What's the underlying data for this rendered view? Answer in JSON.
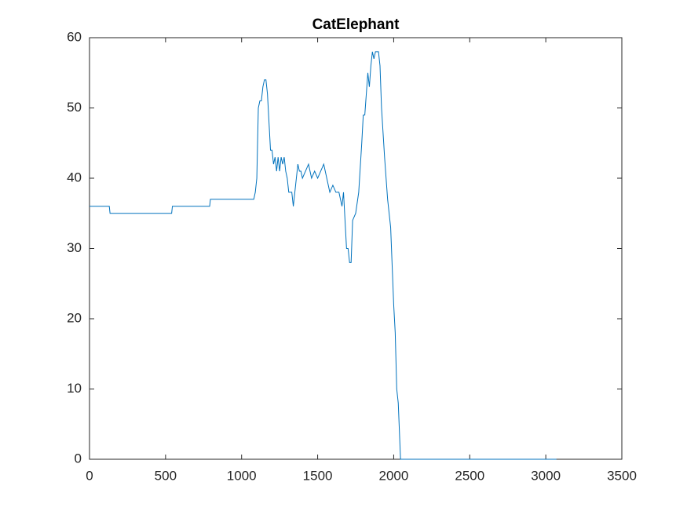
{
  "chart_data": {
    "type": "line",
    "title": "CatElephant",
    "series": [
      {
        "color": "#0072bd",
        "x": [
          0,
          130,
          135,
          540,
          545,
          790,
          795,
          1080,
          1090,
          1100,
          1110,
          1120,
          1130,
          1140,
          1150,
          1160,
          1170,
          1180,
          1190,
          1200,
          1210,
          1220,
          1230,
          1240,
          1250,
          1260,
          1270,
          1280,
          1290,
          1300,
          1310,
          1330,
          1340,
          1350,
          1360,
          1370,
          1380,
          1390,
          1400,
          1420,
          1440,
          1460,
          1480,
          1500,
          1520,
          1540,
          1560,
          1580,
          1600,
          1620,
          1640,
          1660,
          1670,
          1680,
          1690,
          1700,
          1710,
          1720,
          1730,
          1750,
          1770,
          1790,
          1800,
          1810,
          1820,
          1830,
          1840,
          1850,
          1860,
          1870,
          1880,
          1900,
          1910,
          1920,
          1940,
          1960,
          1980,
          2000,
          2010,
          2020,
          2030,
          2045,
          3070
        ],
        "values": [
          36,
          36,
          35,
          35,
          36,
          36,
          37,
          37,
          38,
          40,
          50,
          51,
          51,
          53,
          54,
          54,
          52,
          48,
          44,
          44,
          42,
          43,
          41,
          43,
          41,
          43,
          42,
          43,
          41,
          40,
          38,
          38,
          36,
          38,
          40,
          42,
          41,
          41,
          40,
          41,
          42,
          40,
          41,
          40,
          41,
          42,
          40,
          38,
          39,
          38,
          38,
          36,
          38,
          34,
          30,
          30,
          28,
          28,
          34,
          35,
          38,
          45,
          49,
          49,
          52,
          55,
          53,
          56,
          58,
          57,
          58,
          58,
          56,
          50,
          43,
          37,
          33,
          22,
          18,
          10,
          8,
          0,
          0
        ]
      }
    ],
    "xlim": [
      0,
      3500
    ],
    "xticks": [
      0,
      500,
      1000,
      1500,
      2000,
      2500,
      3000,
      3500
    ],
    "ylim": [
      0,
      60
    ],
    "yticks": [
      0,
      10,
      20,
      30,
      40,
      50,
      60
    ]
  }
}
